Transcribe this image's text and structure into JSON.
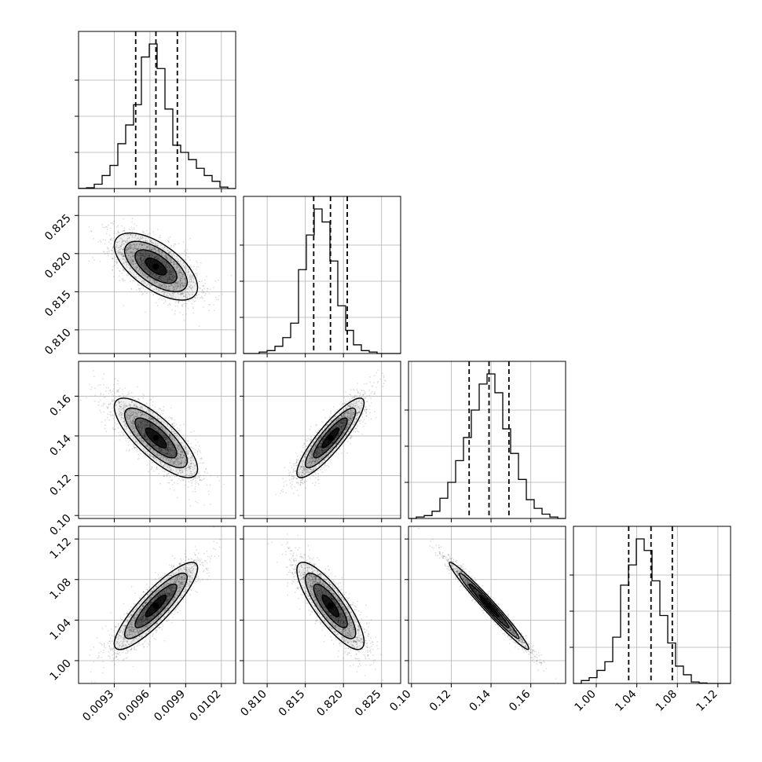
{
  "chart_data": {
    "type": "corner",
    "parameters": [
      {
        "mean": 0.00965,
        "q16": 0.00948,
        "q50": 0.00965,
        "q84": 0.00983,
        "range": [
          0.009,
          0.01032
        ],
        "ticks": [
          0.0093,
          0.0096,
          0.0099,
          0.0102
        ],
        "tick_labels": [
          "0.0093",
          "0.0096",
          "0.0099",
          "0.0102"
        ]
      },
      {
        "mean": 0.8183,
        "q16": 0.8161,
        "q50": 0.8183,
        "q84": 0.8205,
        "range": [
          0.8069,
          0.8275
        ],
        "ticks": [
          0.81,
          0.815,
          0.82,
          0.825
        ],
        "tick_labels": [
          "0.810",
          "0.815",
          "0.820",
          "0.825"
        ]
      },
      {
        "mean": 0.139,
        "q16": 0.129,
        "q50": 0.139,
        "q84": 0.149,
        "range": [
          0.0985,
          0.1775
        ],
        "ticks": [
          0.1,
          0.12,
          0.14,
          0.16
        ],
        "tick_labels": [
          "0.10",
          "0.12",
          "0.14",
          "0.16"
        ]
      },
      {
        "mean": 1.054,
        "q16": 1.032,
        "q50": 1.054,
        "q84": 1.075,
        "range": [
          0.9775,
          1.1325
        ],
        "ticks": [
          1.0,
          1.04,
          1.08,
          1.12
        ],
        "tick_labels": [
          "1.00",
          "1.04",
          "1.08",
          "1.12"
        ]
      }
    ],
    "histograms": [
      {
        "bins": 20,
        "counts": [
          0.1,
          0.5,
          3,
          9,
          16,
          31,
          44,
          58,
          91,
          100,
          83,
          55,
          30,
          25,
          20,
          14,
          9,
          5,
          1,
          0
        ]
      },
      {
        "bins": 20,
        "counts": [
          0,
          0,
          1,
          2,
          5,
          11,
          21,
          58,
          82,
          100,
          91,
          64,
          33,
          16,
          6,
          2,
          1,
          0,
          0,
          0
        ]
      },
      {
        "bins": 20,
        "counts": [
          0,
          1,
          2,
          5,
          14,
          25,
          40,
          56,
          75,
          93,
          100,
          87,
          62,
          45,
          27,
          13,
          7,
          3,
          1,
          0
        ]
      },
      {
        "bins": 20,
        "counts": [
          0,
          2,
          4,
          9,
          15,
          32,
          68,
          82,
          100,
          92,
          71,
          47,
          28,
          12,
          6,
          1,
          0.3,
          0,
          0,
          0
        ]
      }
    ],
    "correlations": {
      "1_0": -0.62,
      "2_0": -0.78,
      "2_1": 0.88,
      "3_0": 0.87,
      "3_1": -0.82,
      "3_2": -0.98
    },
    "quantile_lines": "dashed",
    "grid": true,
    "sample_points": 2500,
    "contour_levels": [
      0.5,
      1.0,
      1.5,
      2.0
    ]
  }
}
